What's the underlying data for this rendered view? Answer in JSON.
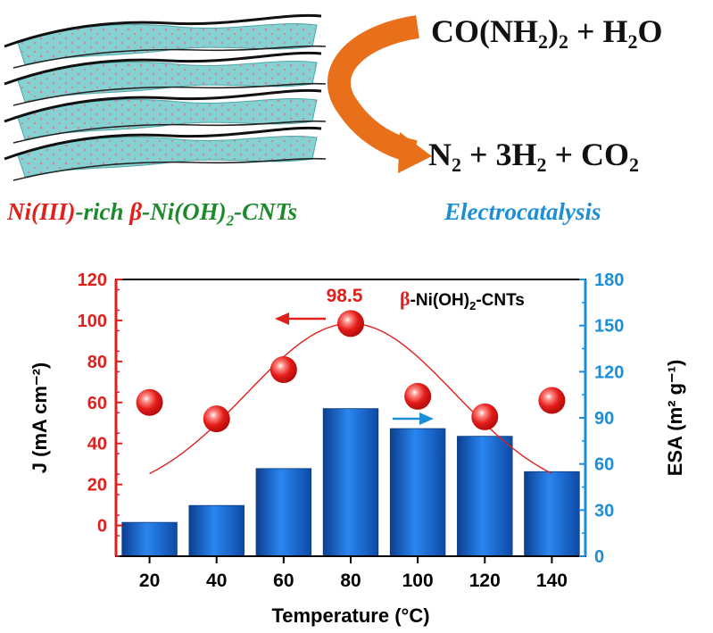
{
  "scheme": {
    "reactants": {
      "part1": "CO(NH",
      "sub1": "2",
      "part2": ")",
      "sub2": "2",
      "part3": " + H",
      "sub3": "2",
      "part4": "O"
    },
    "products": {
      "part1": "N",
      "sub1": "2",
      "part2": " + 3H",
      "sub2": "2",
      "part3": " + CO",
      "sub3": "2"
    },
    "caption": {
      "p1": "Ni(III)",
      "p1_color": "#e0201c",
      "p2": "-rich ",
      "p2_color": "#1e8a2e",
      "p3": "β",
      "p3_color": "#e0201c",
      "p4": "-Ni(OH)",
      "p4_color": "#1e8a2e",
      "p4_sub": "2",
      "p5": "-CNTs",
      "p6": "Electrocatalysis",
      "p6_color": "#1c8ed6"
    },
    "arrow_color": "#e8701a",
    "sheet_color": "#86d1d1"
  },
  "chart_data": {
    "type": "bar",
    "categories": [
      "20",
      "40",
      "60",
      "80",
      "100",
      "120",
      "140"
    ],
    "xlabel": "Temperature (°C)",
    "series": [
      {
        "axis": "right",
        "type": "bar",
        "ylabel": "ESA (m² g⁻¹)",
        "values": [
          22,
          33,
          57,
          96,
          83,
          78,
          55
        ],
        "color": "#1f6fd6"
      },
      {
        "axis": "left",
        "type": "scatter",
        "ylabel": "J (mA cm⁻²)",
        "values": [
          60,
          52,
          76,
          98.5,
          63,
          53,
          61
        ],
        "color": "#e0201c",
        "fit": "gaussian curve"
      }
    ],
    "ylim_left": [
      -15,
      120
    ],
    "yticks_left": [
      "120",
      "100",
      "80",
      "60",
      "40",
      "20",
      "0"
    ],
    "ylim_right": [
      0,
      180
    ],
    "yticks_right": [
      "180",
      "150",
      "120",
      "90",
      "60",
      "30",
      "0"
    ],
    "annotation_peak": "98.5",
    "legend": {
      "beta": "β",
      "label": "-Ni(OH)",
      "sub": "2",
      "tail": "-CNTs"
    },
    "left_axis_color": "#e0201c",
    "right_axis_color": "#1c8ed6",
    "grid": false
  }
}
